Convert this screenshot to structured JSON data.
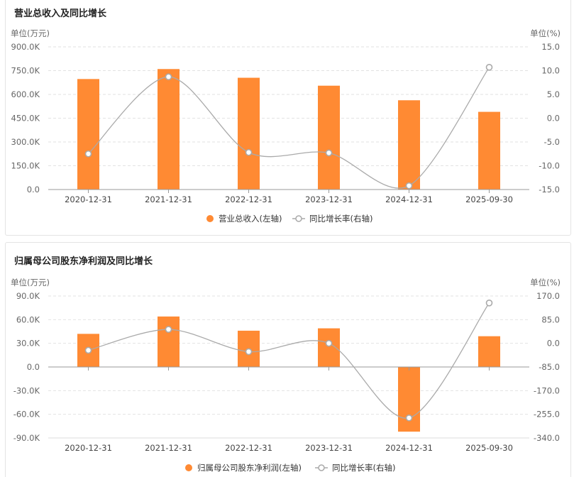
{
  "chart_data": [
    {
      "type": "bar+line",
      "title": "营业总收入及同比增长",
      "left_unit": "单位(万元)",
      "right_unit": "单位(%)",
      "categories": [
        "2020-12-31",
        "2021-12-31",
        "2022-12-31",
        "2023-12-31",
        "2024-12-31",
        "2025-09-30"
      ],
      "left_axis": {
        "min": 0,
        "max": 900,
        "ticks": [
          "900.0K",
          "750.0K",
          "600.0K",
          "450.0K",
          "300.0K",
          "150.0K",
          "0.0"
        ]
      },
      "right_axis": {
        "min": -15,
        "max": 15,
        "ticks": [
          "15.0",
          "10.0",
          "5.0",
          "0.0",
          "-5.0",
          "-10.0",
          "-15.0"
        ]
      },
      "bar_series": {
        "name": "营业总收入(左轴)",
        "color": "#ff8a33",
        "values": [
          697,
          760,
          705,
          655,
          563,
          490
        ]
      },
      "line_series": {
        "name": "同比增长率(右轴)",
        "color": "#aaaaaa",
        "values": [
          -7.5,
          8.7,
          -7.2,
          -7.3,
          -14.2,
          10.7
        ]
      },
      "grid": "horizontal-dashed",
      "legend": "bottom-center"
    },
    {
      "type": "bar+line",
      "title": "归属母公司股东净利润及同比增长",
      "left_unit": "单位(万元)",
      "right_unit": "单位(%)",
      "categories": [
        "2020-12-31",
        "2021-12-31",
        "2022-12-31",
        "2023-12-31",
        "2024-12-31",
        "2025-09-30"
      ],
      "left_axis": {
        "min": -90,
        "max": 90,
        "ticks": [
          "90.0K",
          "60.0K",
          "30.0K",
          "0.0",
          "-30.0K",
          "-60.0K",
          "-90.0K"
        ]
      },
      "right_axis": {
        "min": -340,
        "max": 170,
        "ticks": [
          "170.0",
          "85.0",
          "0.0",
          "-85.0",
          "-170.0",
          "-255.0",
          "-340.0"
        ]
      },
      "bar_series": {
        "name": "归属母公司股东净利润(左轴)",
        "color": "#ff8a33",
        "values": [
          42,
          64,
          46,
          49,
          -82,
          39
        ]
      },
      "line_series": {
        "name": "同比增长率(右轴)",
        "color": "#aaaaaa",
        "values": [
          -25,
          50,
          -30,
          0,
          -268,
          145
        ]
      },
      "grid": "horizontal-dashed",
      "legend": "bottom-center"
    }
  ]
}
